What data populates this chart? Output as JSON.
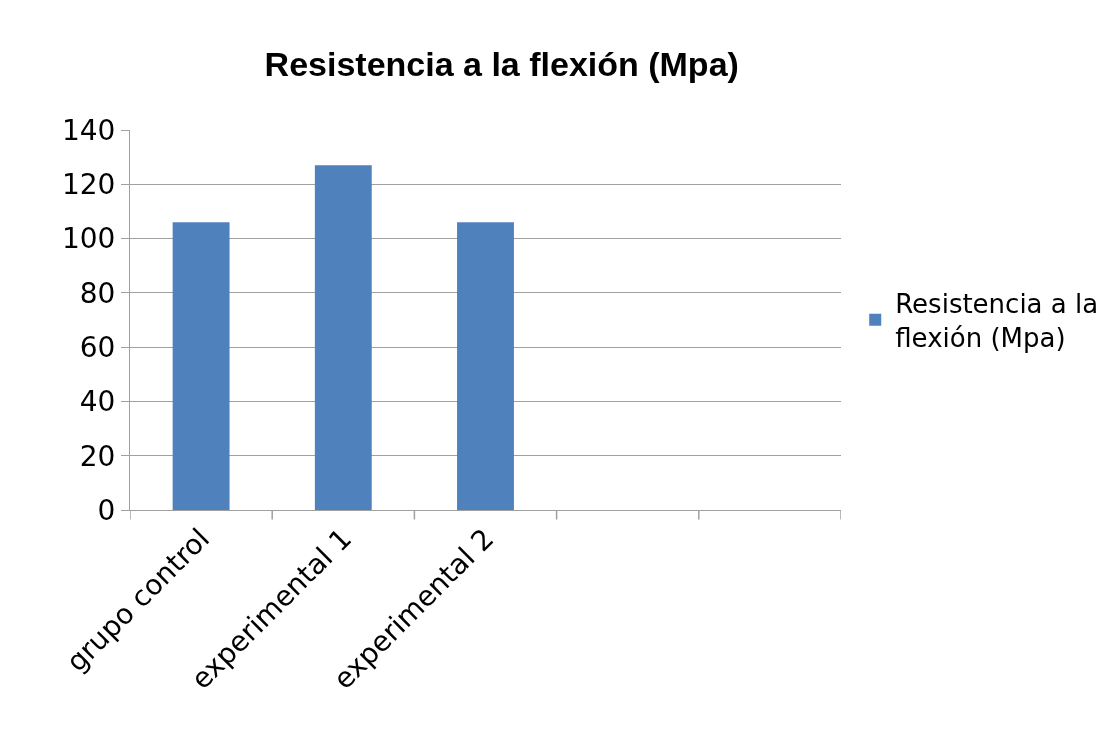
{
  "chart_data": {
    "type": "bar",
    "title": "Resistencia a la flexión (Mpa)",
    "categories": [
      "grupo control",
      "experimental 1",
      "experimental 2",
      null,
      null
    ],
    "series": [
      {
        "name": "Resistencia a la flexión (Mpa)",
        "color": "#4f81bd",
        "values": [
          106,
          127,
          106,
          null,
          null
        ]
      }
    ],
    "ylim": [
      0,
      140
    ],
    "yticks": [
      0,
      20,
      40,
      60,
      80,
      100,
      120,
      140
    ],
    "grid": "y",
    "legend": "right"
  }
}
